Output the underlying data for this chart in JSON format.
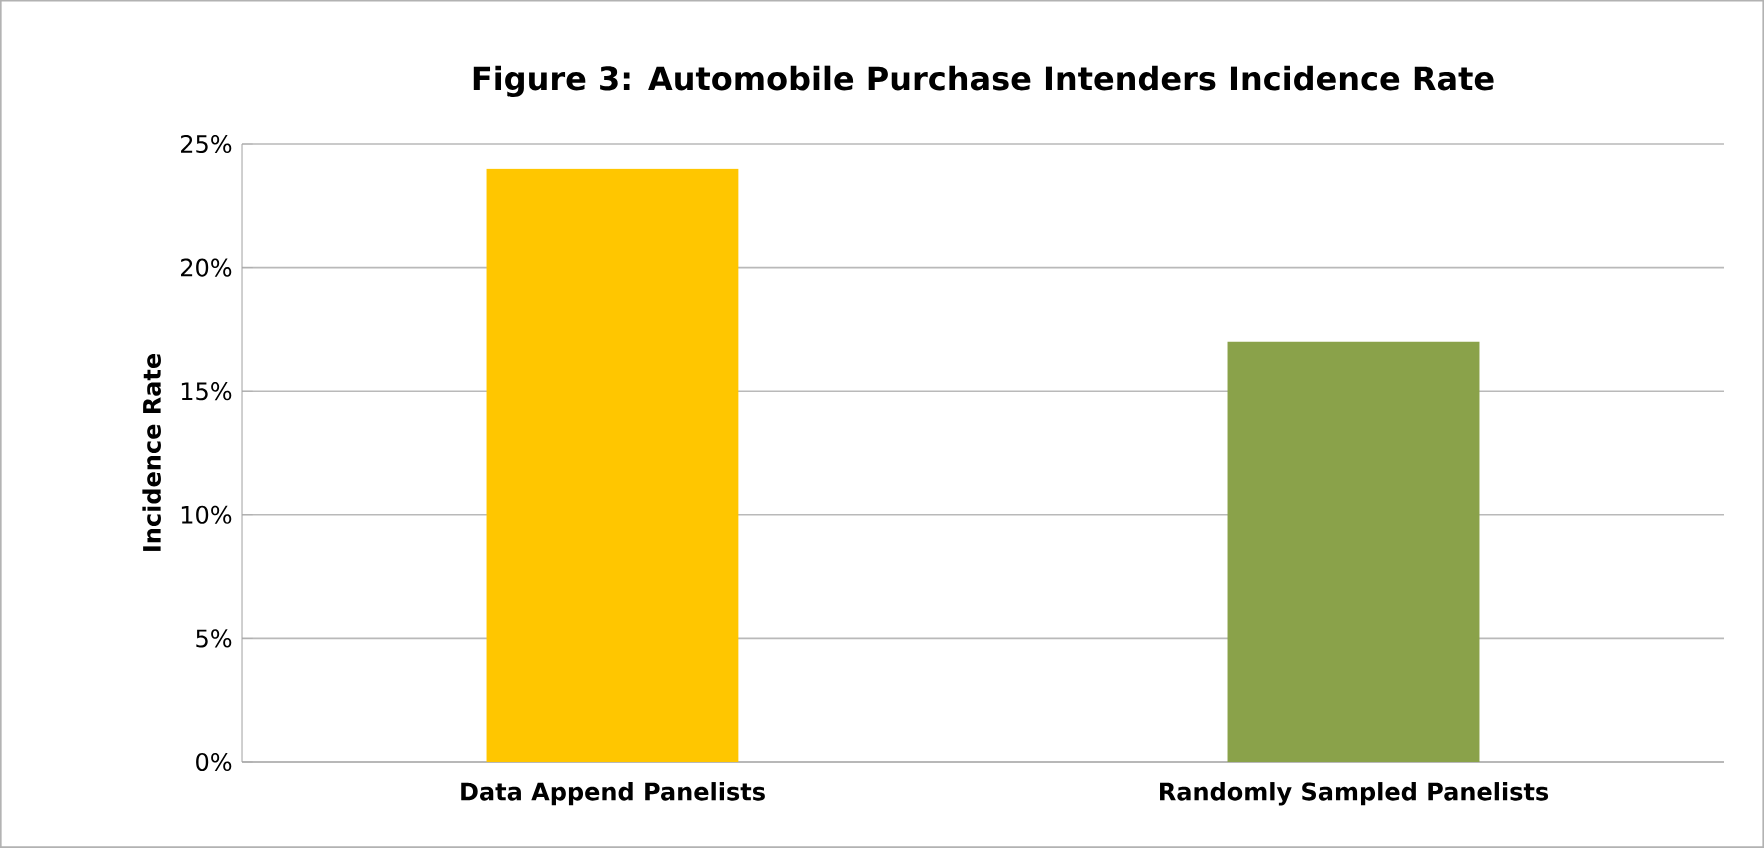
{
  "chart_data": {
    "type": "bar",
    "title": "Figure 3: Automobile Purchase Intenders Incidence Rate",
    "ylabel": "Incidence Rate",
    "categories": [
      "Data Append Panelists",
      "Randomly Sampled Panelists"
    ],
    "values": [
      24,
      17
    ],
    "colors": [
      "#ffc600",
      "#8aa24a"
    ],
    "ylim": [
      0,
      25
    ],
    "yticks": [
      {
        "value": 0,
        "label": "0%"
      },
      {
        "value": 5,
        "label": "5%"
      },
      {
        "value": 10,
        "label": "10%"
      },
      {
        "value": 15,
        "label": "15%"
      },
      {
        "value": 20,
        "label": "20%"
      },
      {
        "value": 25,
        "label": "25%"
      }
    ],
    "grid": "y"
  }
}
